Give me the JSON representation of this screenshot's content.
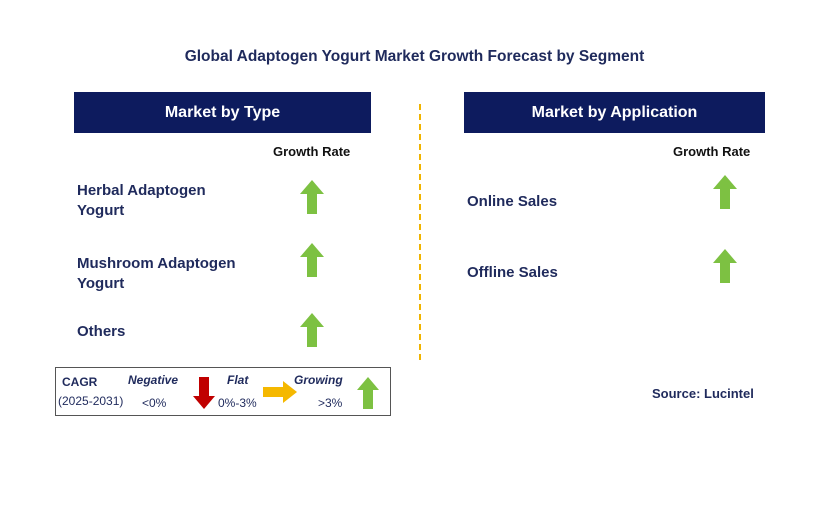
{
  "title": "Global Adaptogen Yogurt Market Growth Forecast by Segment",
  "left_panel": {
    "header": "Market by Type",
    "growth_label": "Growth Rate",
    "items": [
      {
        "line1": "Herbal Adaptogen",
        "line2": "Yogurt",
        "trend": "up"
      },
      {
        "line1": "Mushroom Adaptogen",
        "line2": "Yogurt",
        "trend": "up"
      },
      {
        "line1": "Others",
        "line2": "",
        "trend": "up"
      }
    ]
  },
  "right_panel": {
    "header": "Market by Application",
    "growth_label": "Growth Rate",
    "items": [
      {
        "label": "Online Sales",
        "trend": "up"
      },
      {
        "label": "Offline Sales",
        "trend": "up"
      }
    ]
  },
  "legend": {
    "cagr": "CAGR",
    "period": "(2025-2031)",
    "negative": {
      "label": "Negative",
      "range": "<0%"
    },
    "flat": {
      "label": "Flat",
      "range": "0%-3%"
    },
    "growing": {
      "label": "Growing",
      "range": ">3%"
    }
  },
  "source": "Source: Lucintel",
  "colors": {
    "header_bg": "#0d1b5e",
    "up_arrow": "#7dc142",
    "down_arrow": "#c00000",
    "flat_arrow": "#f5b800",
    "divider": "#f0b400"
  }
}
